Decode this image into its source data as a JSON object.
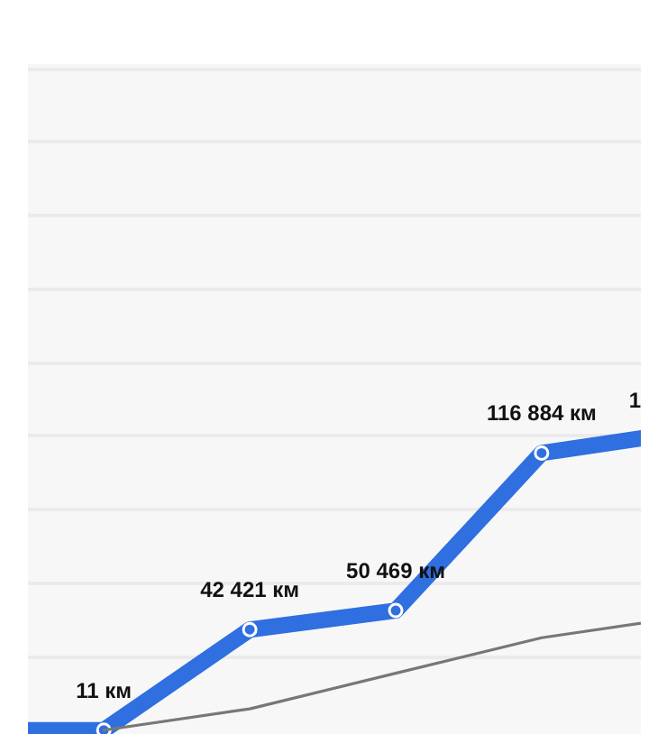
{
  "chart_data": {
    "type": "line",
    "categories": [
      null,
      null,
      null,
      null,
      null,
      null
    ],
    "ylim": [
      -2000,
      281000
    ],
    "yticks": [
      {
        "value": 31000,
        "label": null
      },
      {
        "value": 62000,
        "label": null
      },
      {
        "value": 93000,
        "label": null
      },
      {
        "value": 124000,
        "label": null
      },
      {
        "value": 155000,
        "label": null
      },
      {
        "value": 186000,
        "label": null
      },
      {
        "value": 217000,
        "label": null
      },
      {
        "value": 248000,
        "label": null
      },
      {
        "value": 279000,
        "label": null
      }
    ],
    "grid": "y",
    "tick_labels": false,
    "marker": "circle",
    "line_style": "solid",
    "series": [
      {
        "color": "#2f6fe0",
        "values": [
          0,
          11,
          42421,
          50469,
          116884,
          126000
        ],
        "value_labels": [
          null,
          "11 км",
          "42 421 км",
          "50 469 км",
          "116 884 км",
          null
        ]
      },
      {
        "color": "#777777",
        "marker": "none",
        "values": [
          null,
          0,
          9000,
          24000,
          39000,
          48000
        ]
      }
    ],
    "annotations": [
      "1"
    ]
  }
}
